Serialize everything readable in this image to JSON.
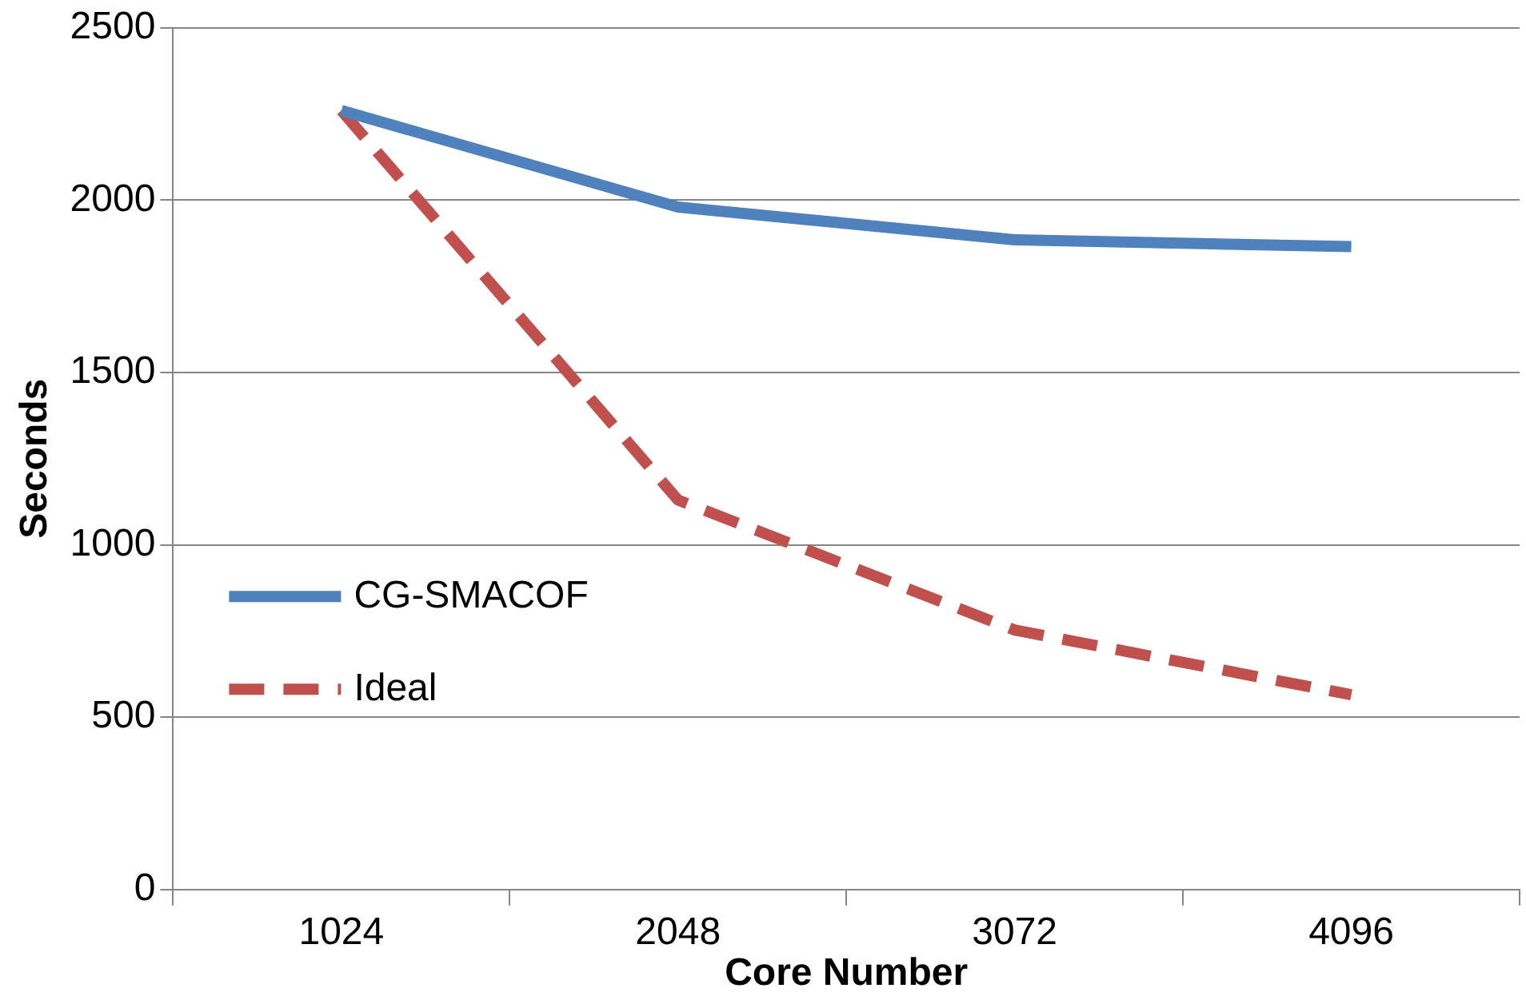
{
  "chart_data": {
    "type": "line",
    "xlabel": "Core Number",
    "ylabel": "Seconds",
    "categories": [
      "1024",
      "2048",
      "3072",
      "4096"
    ],
    "series": [
      {
        "name": "CG-SMACOF",
        "color": "#4f81bd",
        "values": [
          2260,
          1980,
          1885,
          1865
        ],
        "line_style": "solid"
      },
      {
        "name": "Ideal",
        "color": "#c0504d",
        "values": [
          2260,
          1130,
          753,
          565
        ],
        "line_style": "dashed"
      }
    ],
    "ylim": [
      0,
      2500
    ],
    "yticks": [
      0,
      500,
      1000,
      1500,
      2000,
      2500
    ],
    "grid": "y",
    "legend": "left",
    "marker": "none"
  }
}
